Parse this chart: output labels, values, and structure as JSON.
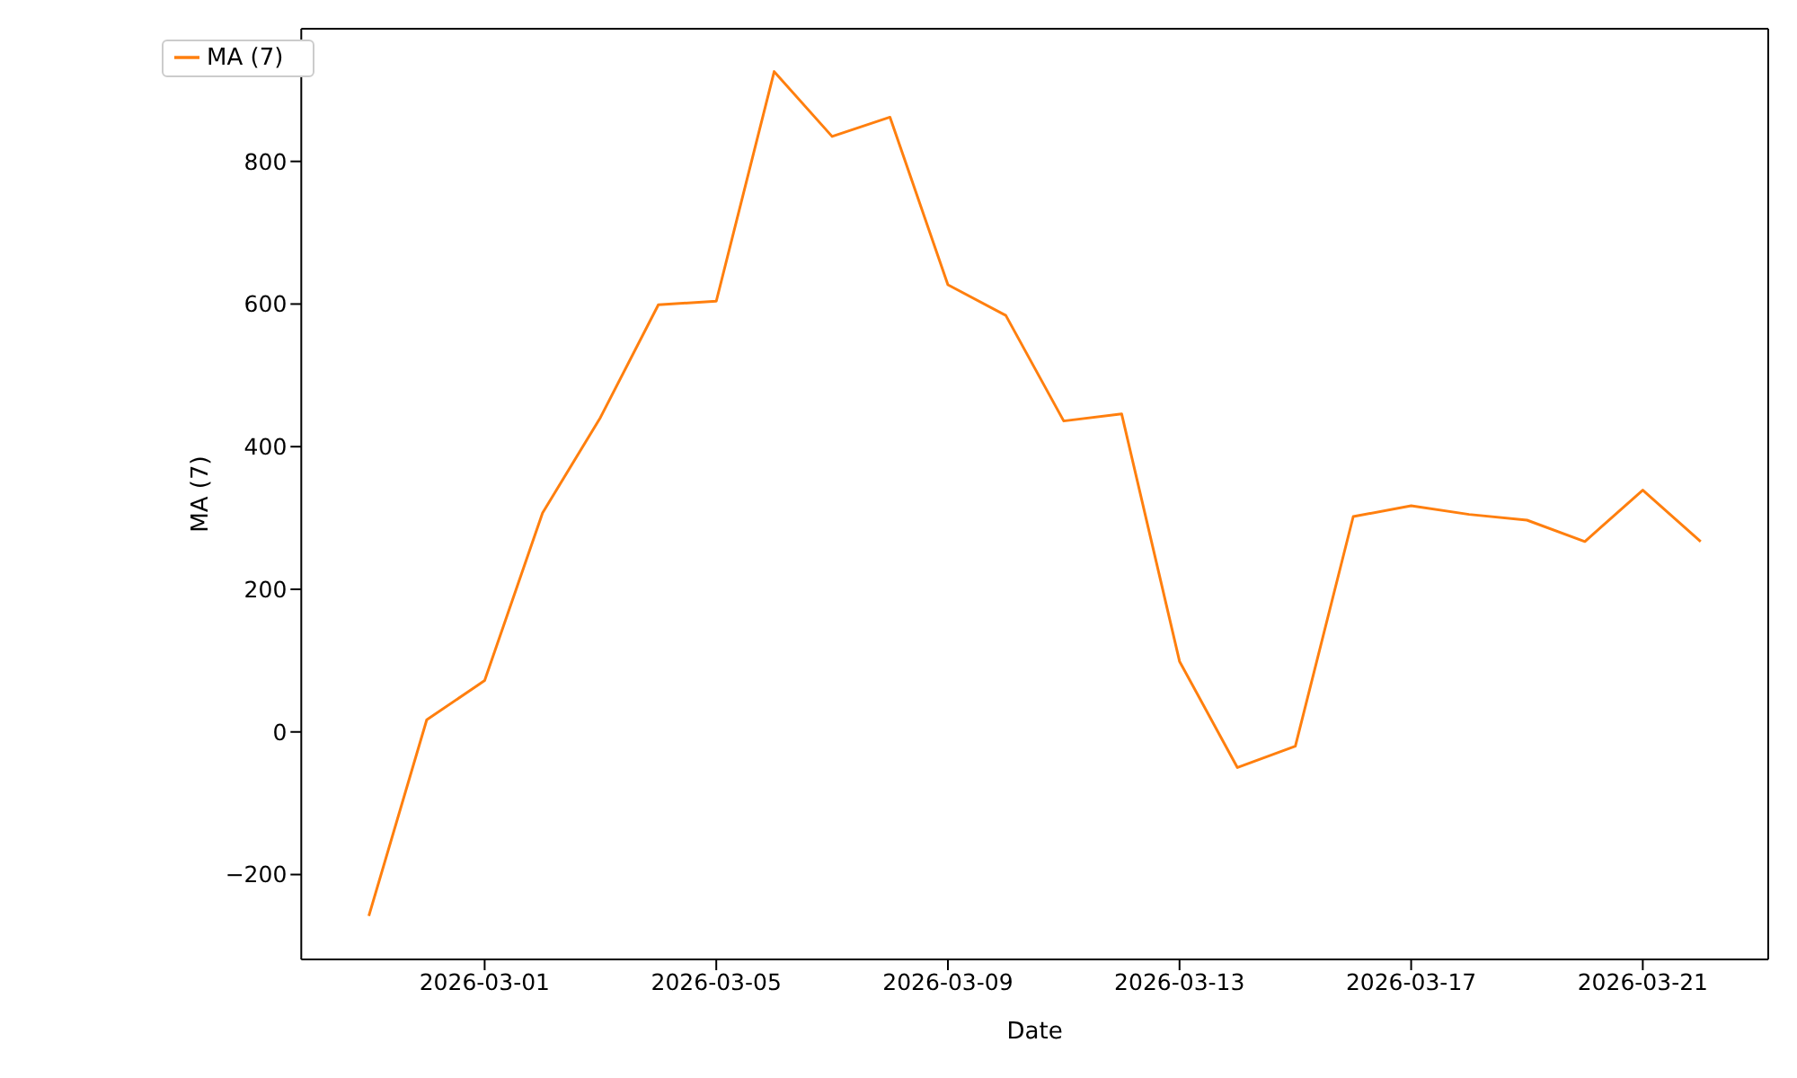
{
  "chart_data": {
    "type": "line",
    "xlabel": "Date",
    "ylabel": "MA (7)",
    "x": [
      "2026-02-27",
      "2026-02-28",
      "2026-03-01",
      "2026-03-02",
      "2026-03-03",
      "2026-03-04",
      "2026-03-05",
      "2026-03-06",
      "2026-03-07",
      "2026-03-08",
      "2026-03-09",
      "2026-03-10",
      "2026-03-11",
      "2026-03-12",
      "2026-03-13",
      "2026-03-14",
      "2026-03-15",
      "2026-03-16",
      "2026-03-17",
      "2026-03-18",
      "2026-03-19",
      "2026-03-20",
      "2026-03-21",
      "2026-03-22"
    ],
    "series": [
      {
        "name": "MA (7)",
        "color": "#ff7f0e",
        "values": [
          -258,
          17,
          72,
          307,
          441,
          599,
          604,
          926,
          835,
          862,
          627,
          584,
          436,
          446,
          99,
          -50,
          -20,
          302,
          317,
          305,
          297,
          267,
          339,
          267
        ]
      }
    ],
    "xlim": [
      "2026-02-25T20:00",
      "2026-03-23T04:00"
    ],
    "xticks": [
      "2026-03-01",
      "2026-03-05",
      "2026-03-09",
      "2026-03-13",
      "2026-03-17",
      "2026-03-21"
    ],
    "ylim": [
      -319,
      986
    ],
    "yticks": [
      -200,
      0,
      200,
      400,
      600,
      800
    ],
    "grid": false,
    "legend": "top left",
    "marker": "none",
    "line_style": "solid"
  }
}
